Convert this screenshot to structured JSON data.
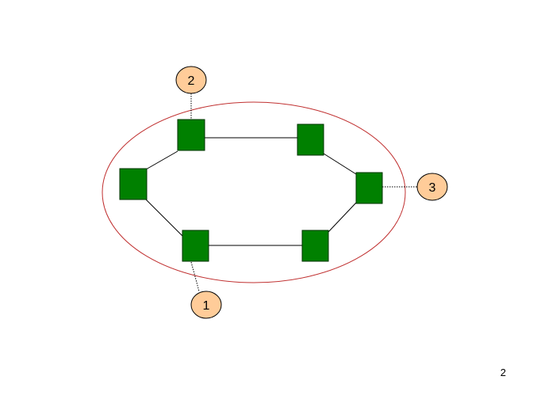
{
  "colors": {
    "node_fill": "#008000",
    "node_stroke": "#003300",
    "ring_stroke": "#c03030",
    "callout_fill": "#ffcc99",
    "callout_stroke": "#000000",
    "link_stroke": "#000000",
    "leader_stroke": "#000000"
  },
  "network": {
    "nodes": [
      "node-a",
      "node-b",
      "node-c",
      "node-d",
      "node-e",
      "node-f"
    ],
    "links": [
      [
        "node-a",
        "node-b"
      ],
      [
        "node-b",
        "node-c"
      ],
      [
        "node-c",
        "node-d"
      ],
      [
        "node-d",
        "node-e"
      ],
      [
        "node-e",
        "node-f"
      ],
      [
        "node-f",
        "node-a"
      ]
    ]
  },
  "callouts": [
    {
      "label": "1",
      "points_to": "node-e"
    },
    {
      "label": "2",
      "points_to": "node-a"
    },
    {
      "label": "3",
      "points_to": "node-c"
    }
  ],
  "footer": {
    "page_number": "2"
  }
}
